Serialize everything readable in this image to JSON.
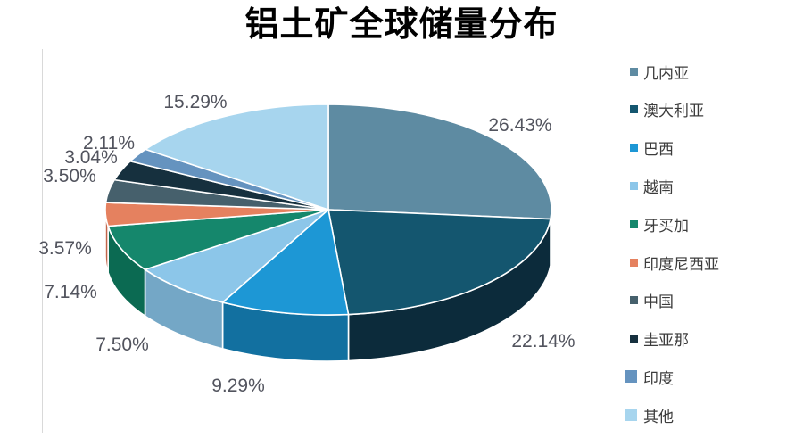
{
  "title": "铝土矿全球储量分布",
  "chart_data": {
    "type": "pie",
    "style": "3d",
    "title": "铝土矿全球储量分布",
    "legend_position": "right",
    "value_suffix": "%",
    "start_angle_deg": 0,
    "direction": "clockwise",
    "slices": [
      {
        "label": "几内亚",
        "value": 26.43,
        "display": "26.43%",
        "color": "#5E8BA2",
        "side_color": "#44697C"
      },
      {
        "label": "澳大利亚",
        "value": 22.14,
        "display": "22.14%",
        "color": "#14566F",
        "side_color": "#0C2B3B"
      },
      {
        "label": "巴西",
        "value": 9.29,
        "display": "9.29%",
        "color": "#1D97D5",
        "side_color": "#1270A0"
      },
      {
        "label": "越南",
        "value": 7.5,
        "display": "7.50%",
        "color": "#8CC6E9",
        "side_color": "#74A7C6"
      },
      {
        "label": "牙买加",
        "value": 7.14,
        "display": "7.14%",
        "color": "#15876C",
        "side_color": "#0B6A52"
      },
      {
        "label": "印度尼西亚",
        "value": 3.57,
        "display": "3.57%",
        "color": "#E5815F",
        "side_color": "#C2654A"
      },
      {
        "label": "中国",
        "value": 3.5,
        "display": "3.50%",
        "color": "#46606C",
        "side_color": "#334852"
      },
      {
        "label": "圭亚那",
        "value": 3.04,
        "display": "3.04%",
        "color": "#16303E",
        "side_color": "#0E212E"
      },
      {
        "label": "印度",
        "value": 2.11,
        "display": "2.11%",
        "color": "#6593BF",
        "side_color": "#4D76A0"
      },
      {
        "label": "其他",
        "value": 15.29,
        "display": "15.29%",
        "color": "#A7D5EE",
        "side_color": "#85B6D2"
      }
    ],
    "legend_marker_sizes": [
      9,
      9,
      9,
      9,
      9,
      9,
      9,
      9,
      14,
      14
    ]
  },
  "colors": {
    "title_text": "#000000",
    "percent_label_text": "#52545E",
    "legend_text": "#3C3C3C",
    "plot_border": "#D9D9D9",
    "background": "#FFFFFF",
    "slice_separator": "#FFFFFF"
  }
}
